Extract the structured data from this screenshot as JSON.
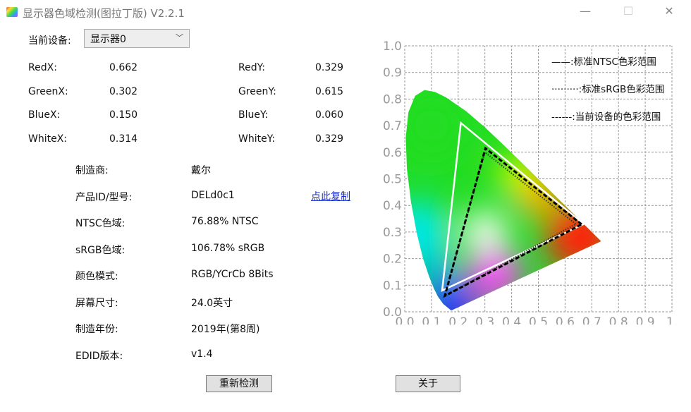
{
  "window": {
    "title": "显示器色域检测(图拉丁版) V2.2.1",
    "minimize": "—",
    "maximize": "☐",
    "close": "✕"
  },
  "device": {
    "label": "当前设备:",
    "selected": "显示器0"
  },
  "coords": [
    {
      "label": "RedX:",
      "value": "0.662",
      "label2": "RedY:",
      "value2": "0.329"
    },
    {
      "label": "GreenX:",
      "value": "0.302",
      "label2": "GreenY:",
      "value2": "0.615"
    },
    {
      "label": "BlueX:",
      "value": "0.150",
      "label2": "BlueY:",
      "value2": "0.060"
    },
    {
      "label": "WhiteX:",
      "value": "0.314",
      "label2": "WhiteY:",
      "value2": "0.329"
    }
  ],
  "info": [
    {
      "label": "制造商:",
      "value": "戴尔"
    },
    {
      "label": "产品ID/型号:",
      "value": "DELd0c1"
    },
    {
      "label": "NTSC色域:",
      "value": "76.88% NTSC"
    },
    {
      "label": "sRGB色域:",
      "value": "106.78% sRGB"
    },
    {
      "label": "颜色模式:",
      "value": "RGB/YCrCb 8Bits"
    },
    {
      "label": "屏幕尺寸:",
      "value": "24.0英寸"
    },
    {
      "label": "制造年份:",
      "value": "2019年(第8周)"
    },
    {
      "label": "EDID版本:",
      "value": "v1.4"
    }
  ],
  "copy_link": "点此复制",
  "buttons": {
    "redetect": "重新检测",
    "about": "关于"
  },
  "chart_data": {
    "type": "scatter",
    "title": "",
    "xlim": [
      0,
      1
    ],
    "ylim": [
      0,
      1
    ],
    "grid": true,
    "x_ticks": [
      "0.0",
      "0.1",
      "0.2",
      "0.3",
      "0.4",
      "0.5",
      "0.6",
      "0.7",
      "0.8",
      "0.9",
      "1."
    ],
    "y_ticks": [
      "0.0",
      "0.1",
      "0.2",
      "0.3",
      "0.4",
      "0.5",
      "0.6",
      "0.7",
      "0.8",
      "0.9",
      "1.0"
    ],
    "legend_position": "top-right",
    "series": [
      {
        "name": "——:标准NTSC色彩范围",
        "style": "solid",
        "color": "#ffffff",
        "points": [
          [
            0.67,
            0.33
          ],
          [
            0.21,
            0.71
          ],
          [
            0.14,
            0.08
          ]
        ]
      },
      {
        "name": "·········:标准sRGB色彩范围",
        "style": "dotted",
        "color": "#333333",
        "points": [
          [
            0.64,
            0.33
          ],
          [
            0.3,
            0.6
          ],
          [
            0.15,
            0.06
          ]
        ]
      },
      {
        "name": "------:当前设备的色彩范围",
        "style": "dashed",
        "color": "#000000",
        "points": [
          [
            0.662,
            0.329
          ],
          [
            0.302,
            0.615
          ],
          [
            0.15,
            0.06
          ]
        ]
      }
    ]
  }
}
